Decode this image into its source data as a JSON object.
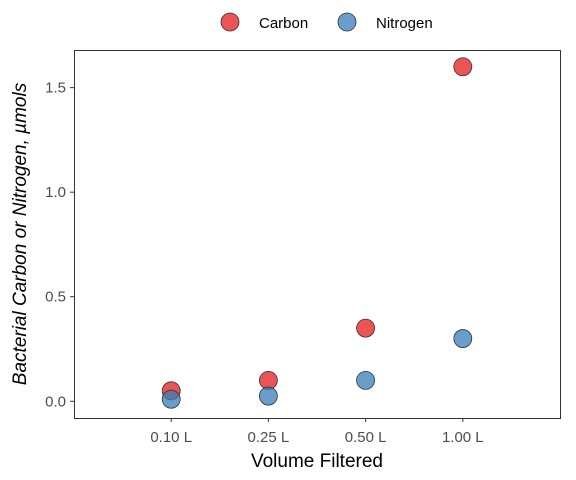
{
  "chart_data": {
    "type": "scatter",
    "categories": [
      "0.10 L",
      "0.25 L",
      "0.50 L",
      "1.00 L"
    ],
    "series": [
      {
        "name": "Carbon",
        "color": "#E41A1C",
        "values": [
          0.05,
          0.1,
          0.35,
          1.6
        ]
      },
      {
        "name": "Nitrogen",
        "color": "#377EB8",
        "values": [
          0.01,
          0.025,
          0.1,
          0.3
        ]
      }
    ],
    "xlabel": "Volume Filtered",
    "ylabel": "Bacterial Carbon or Nitrogen, µmols",
    "ylim": [
      -0.08,
      1.68
    ],
    "yticks": [
      0.0,
      0.5,
      1.0,
      1.5
    ],
    "ytick_labels": [
      "0.0",
      "0.5",
      "1.0",
      "1.5"
    ],
    "grid": false,
    "legend_position": "top"
  }
}
